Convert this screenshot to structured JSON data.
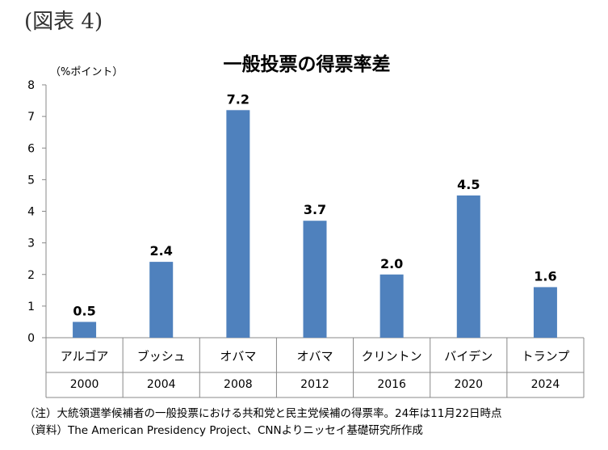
{
  "figure_label": "(図表 4)",
  "footnotes": {
    "note": "（注）大統領選挙候補者の一般投票における共和党と民主党候補の得票率。24年は11月22日時点",
    "source": "（資料）The American Presidency Project、CNNよりニッセイ基礎研究所作成"
  },
  "chart_data": {
    "type": "bar",
    "title": "一般投票の得票率差",
    "ylabel": "（%ポイント）",
    "xlabel": "",
    "ylim": [
      0,
      8
    ],
    "yticks": [
      0,
      1,
      2,
      3,
      4,
      5,
      6,
      7,
      8
    ],
    "grid": false,
    "bar_color": "#4f81bd",
    "categories": [
      {
        "name": "アルゴア",
        "year": "2000"
      },
      {
        "name": "ブッシュ",
        "year": "2004"
      },
      {
        "name": "オバマ",
        "year": "2008"
      },
      {
        "name": "オバマ",
        "year": "2012"
      },
      {
        "name": "クリントン",
        "year": "2016"
      },
      {
        "name": "バイデン",
        "year": "2020"
      },
      {
        "name": "トランプ",
        "year": "2024"
      }
    ],
    "values": [
      0.5,
      2.4,
      7.2,
      3.7,
      2.0,
      4.5,
      1.6
    ],
    "data_labels": [
      "0.5",
      "2.4",
      "7.2",
      "3.7",
      "2.0",
      "4.5",
      "1.6"
    ]
  }
}
